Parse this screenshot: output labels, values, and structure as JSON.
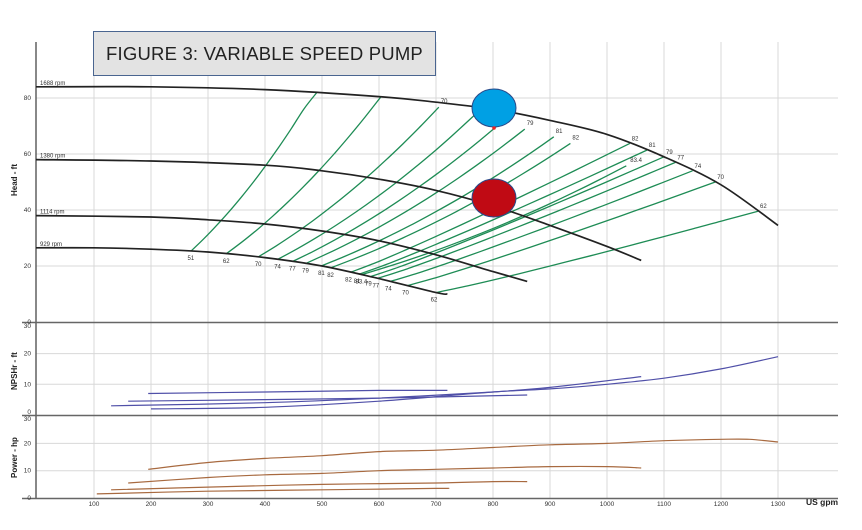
{
  "title": "FIGURE 3: VARIABLE SPEED PUMP",
  "colors": {
    "speed_curve": "#222222",
    "efficiency_line": "#1e8c55",
    "npsh_line": "#5050a8",
    "power_line": "#a86a40",
    "grid": "#d8d8d8",
    "axis": "#555555",
    "title_bg": "#e3e3e3",
    "title_border": "#4a6590",
    "marker_high": "#00a0e4",
    "marker_low": "#c00a14",
    "marker_border": "#2a4a8a",
    "red_dot": "#ee2222"
  },
  "chart_data": [
    {
      "type": "line",
      "title": "FIGURE 3: VARIABLE SPEED PUMP",
      "panel": "head",
      "xlabel": "US gpm",
      "ylabel": "Head - ft",
      "xlim": [
        0,
        1400
      ],
      "ylim": [
        0,
        90
      ],
      "yticks": [
        0,
        20,
        40,
        60,
        80
      ],
      "grid": true,
      "series": [
        {
          "name": "1688 rpm",
          "x": [
            0,
            200,
            400,
            600,
            700,
            800,
            900,
            1000,
            1100,
            1200,
            1300
          ],
          "y": [
            84,
            84,
            83,
            80.5,
            78.5,
            76,
            72,
            67,
            59,
            49,
            34.5
          ]
        },
        {
          "name": "1380 rpm",
          "x": [
            0,
            200,
            400,
            500,
            600,
            700,
            800,
            900,
            1000,
            1060
          ],
          "y": [
            58,
            57.5,
            56,
            54,
            51,
            47,
            41.5,
            34.5,
            27,
            22
          ]
        },
        {
          "name": "1114 rpm",
          "x": [
            0,
            200,
            300,
            400,
            500,
            600,
            700,
            800,
            860
          ],
          "y": [
            38,
            37.5,
            36.5,
            35,
            32.5,
            29,
            24,
            18,
            14.5
          ]
        },
        {
          "name": "929 rpm",
          "x": [
            0,
            100,
            200,
            300,
            400,
            500,
            600,
            700,
            720
          ],
          "y": [
            26.5,
            26.5,
            26,
            25,
            23,
            20,
            15.5,
            10.5,
            10
          ]
        }
      ],
      "efficiency_labels_1688": [
        "70",
        "74",
        "77",
        "79",
        "81",
        "82",
        "83.4",
        "82",
        "81",
        "79",
        "77",
        "74",
        "70",
        "62"
      ],
      "efficiency_labels_929": [
        "51",
        "62",
        "70",
        "74",
        "77",
        "79",
        "81",
        "82",
        "83.4",
        "82",
        "81",
        "79",
        "77",
        "74",
        "70",
        "62"
      ],
      "annotations": [
        {
          "type": "ellipse",
          "color": "blue",
          "x": 800,
          "y": 76
        },
        {
          "type": "ellipse",
          "color": "red",
          "x": 800,
          "y": 44
        }
      ]
    },
    {
      "type": "line",
      "panel": "npshr",
      "ylabel": "NPSHr - ft",
      "ylim": [
        0,
        30
      ],
      "yticks": [
        0,
        10,
        20,
        30
      ],
      "series": [
        {
          "name": "1688 rpm",
          "x": [
            200,
            400,
            600,
            800,
            900,
            1000,
            1100,
            1200,
            1300
          ],
          "y": [
            2,
            2.5,
            4.5,
            7.5,
            8.5,
            10,
            12,
            15,
            19
          ]
        },
        {
          "name": "1380 rpm",
          "x": [
            130,
            400,
            600,
            800,
            900,
            1060
          ],
          "y": [
            3,
            4,
            5.5,
            7.5,
            9,
            12.5
          ]
        },
        {
          "name": "1114 rpm",
          "x": [
            160,
            400,
            600,
            860
          ],
          "y": [
            4.5,
            5,
            5.5,
            6.5
          ]
        },
        {
          "name": "929 rpm",
          "x": [
            195,
            400,
            600,
            720
          ],
          "y": [
            7,
            7.5,
            8,
            8
          ]
        }
      ]
    },
    {
      "type": "line",
      "panel": "power",
      "ylabel": "Power - hp",
      "xlabel": "US gpm",
      "ylim": [
        0,
        30
      ],
      "yticks": [
        0,
        10,
        20,
        30
      ],
      "xticks": [
        100,
        200,
        300,
        400,
        500,
        600,
        700,
        800,
        900,
        1000,
        1100,
        1200,
        1300
      ],
      "series": [
        {
          "name": "1688 rpm",
          "x": [
            195,
            300,
            400,
            500,
            600,
            700,
            800,
            900,
            1000,
            1100,
            1200,
            1250,
            1300
          ],
          "y": [
            10.5,
            13,
            14.5,
            15.5,
            17,
            17.5,
            18.5,
            19.5,
            20,
            21,
            21.5,
            21.5,
            20.5
          ]
        },
        {
          "name": "1380 rpm",
          "x": [
            160,
            300,
            400,
            500,
            600,
            700,
            800,
            900,
            1000,
            1060
          ],
          "y": [
            5.5,
            7.5,
            8.5,
            9,
            10,
            10.5,
            11,
            11.5,
            11.5,
            11
          ]
        },
        {
          "name": "1114 rpm",
          "x": [
            130,
            300,
            500,
            700,
            800,
            860
          ],
          "y": [
            3,
            4,
            5,
            5.5,
            6,
            6
          ]
        },
        {
          "name": "929 rpm",
          "x": [
            105,
            300,
            500,
            700,
            720
          ],
          "y": [
            1.5,
            2.5,
            3,
            3.5,
            3.5
          ]
        }
      ]
    }
  ],
  "labels": {
    "head_axis": "Head - ft",
    "npsh_axis": "NPSHr - ft",
    "power_axis": "Power - hp",
    "x_unit": "US gpm"
  }
}
